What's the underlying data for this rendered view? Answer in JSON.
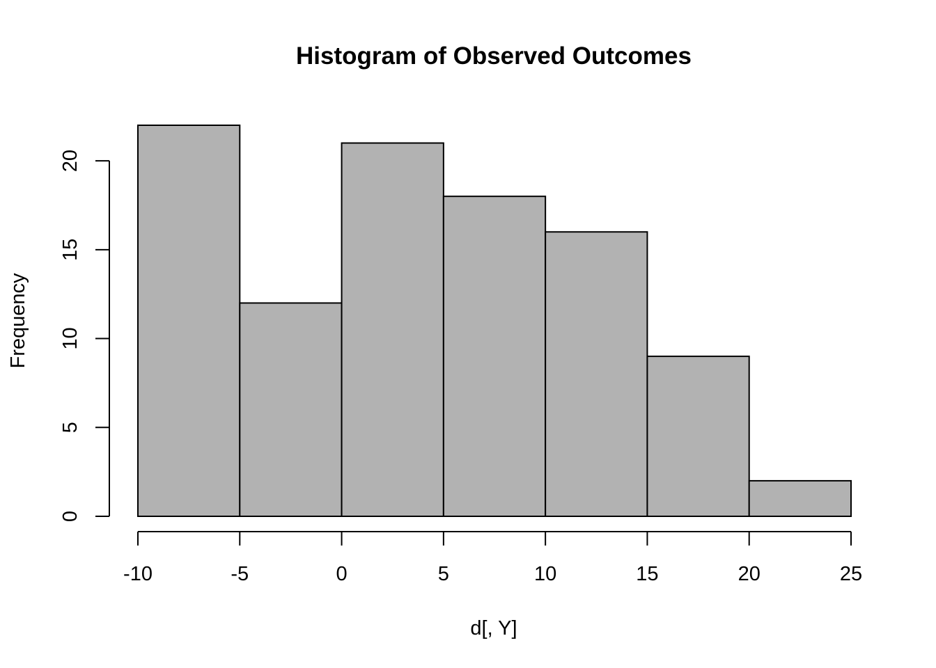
{
  "chart_data": {
    "type": "bar",
    "title": "Histogram of Observed Outcomes",
    "xlabel": "d[, Y]",
    "ylabel": "Frequency",
    "bin_edges": [
      -10,
      -5,
      0,
      5,
      10,
      15,
      20,
      25
    ],
    "categories": [
      "-10 to -5",
      "-5 to 0",
      "0 to 5",
      "5 to 10",
      "10 to 15",
      "15 to 20",
      "20 to 25"
    ],
    "values": [
      22,
      12,
      21,
      18,
      16,
      9,
      2
    ],
    "xlim": [
      -10,
      25
    ],
    "ylim": [
      0,
      22
    ],
    "x_ticks": [
      -10,
      -5,
      0,
      5,
      10,
      15,
      20,
      25
    ],
    "x_tick_labels": [
      "-10",
      "-5",
      "0",
      "5",
      "10",
      "15",
      "20",
      "25"
    ],
    "y_ticks": [
      0,
      5,
      10,
      15,
      20
    ],
    "y_tick_labels": [
      "0",
      "5",
      "10",
      "15",
      "20"
    ],
    "grid": false,
    "bar_color": "#b2b2b2"
  }
}
